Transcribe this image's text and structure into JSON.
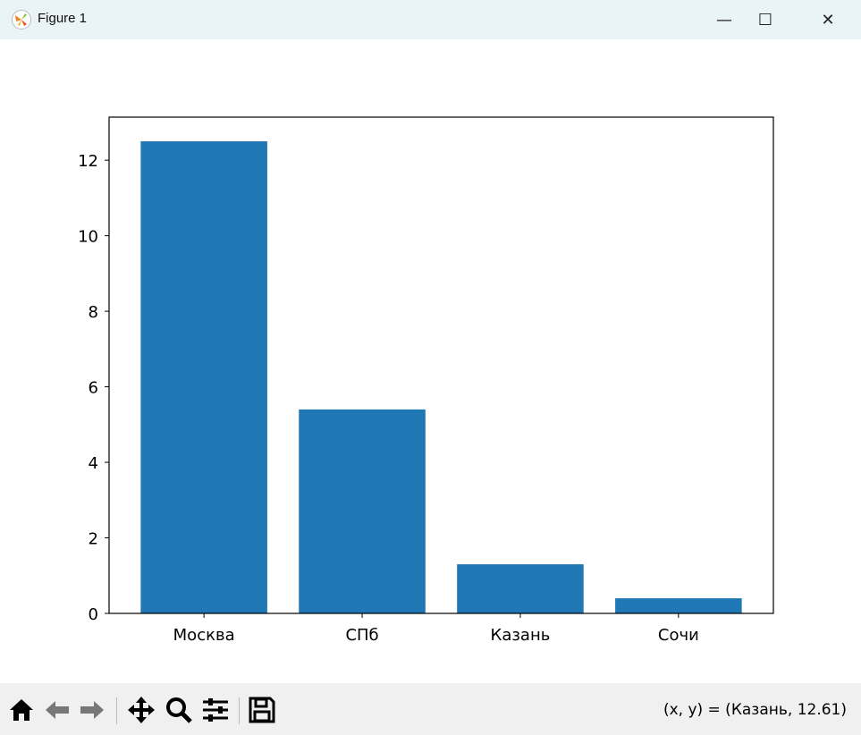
{
  "window": {
    "title": "Figure 1",
    "minimize": "—",
    "maximize": "☐",
    "close": "✕"
  },
  "toolbar": {
    "icons": [
      "home-icon",
      "back-icon",
      "forward-icon",
      "pan-icon",
      "zoom-icon",
      "configure-subplots-icon",
      "save-icon"
    ],
    "coords": "(x, y) = (Казань, 12.61)"
  },
  "chart_data": {
    "type": "bar",
    "categories": [
      "Москва",
      "СПб",
      "Казань",
      "Сочи"
    ],
    "values": [
      12.5,
      5.4,
      1.3,
      0.4
    ],
    "color": "#1f77b4",
    "title": "",
    "xlabel": "",
    "ylabel": "",
    "ylim": [
      0,
      13.14
    ],
    "yticks": [
      0,
      2,
      4,
      6,
      8,
      10,
      12
    ],
    "grid": false
  }
}
